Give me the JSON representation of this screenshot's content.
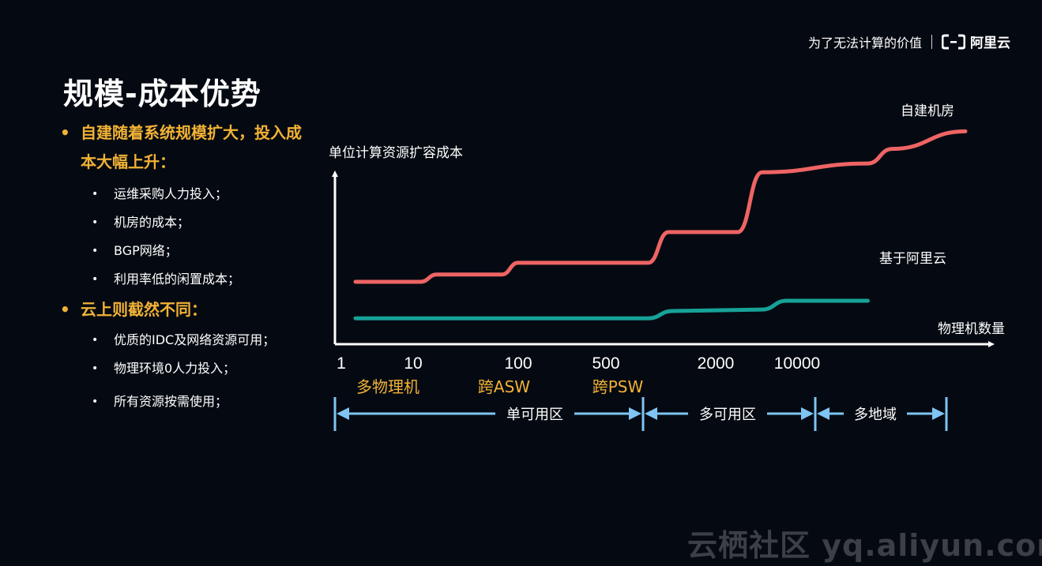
{
  "header": {
    "slogan": "为了无法计算的价值",
    "brand_name": "阿里云",
    "brand_icon": "aliyun-logo-icon"
  },
  "title": "规模-成本优势",
  "left": {
    "point1": {
      "text": "自建随着系统规模扩大，投入成本大幅上升：",
      "items": [
        "运维采购人力投入；",
        "机房的成本；",
        "BGP网络；",
        "利用率低的闲置成本；"
      ]
    },
    "point2": {
      "text": "云上则截然不同：",
      "items": [
        "优质的IDC及网络资源可用；",
        "物理环境0人力投入；",
        "所有资源按需使用；"
      ]
    }
  },
  "chart_data": {
    "type": "line",
    "title": "",
    "ylabel": "单位计算资源扩容成本",
    "xlabel": "物理机数量",
    "x_ticks": [
      "1",
      "10",
      "100",
      "500",
      "2000",
      "10000"
    ],
    "categories": [
      "多物理机",
      "跨ASW",
      "跨PSW"
    ],
    "regions": [
      "单可用区",
      "多可用区",
      "多地域"
    ],
    "series": [
      {
        "name": "自建机房",
        "color": "#ee6464",
        "x": [
          0,
          0.8,
          1,
          1.8,
          2,
          3.6,
          3.85,
          4.7,
          5,
          6.3,
          6.6,
          7.5
        ],
        "values": [
          3.3,
          3.3,
          3.8,
          3.8,
          4.6,
          4.6,
          6.7,
          6.7,
          10.8,
          11.4,
          12.4,
          13.6
        ]
      },
      {
        "name": "基于阿里云",
        "color": "#17a297",
        "x": [
          0,
          3.6,
          3.9,
          5.0,
          5.3,
          6.3
        ],
        "values": [
          0.8,
          0.8,
          1.3,
          1.4,
          2.0,
          2.0
        ]
      }
    ]
  },
  "watermark": "云栖社区 yq.aliyun.com"
}
